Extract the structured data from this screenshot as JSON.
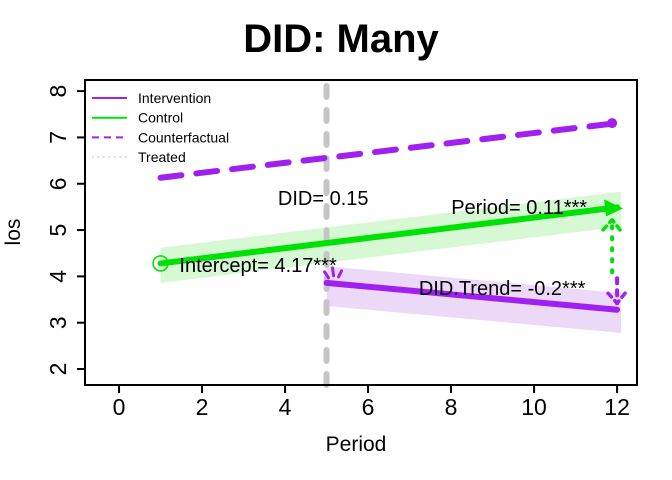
{
  "title": "DID: Many",
  "axes": {
    "x": {
      "label": "Period",
      "ticks": [
        "0",
        "2",
        "4",
        "6",
        "8",
        "10",
        "12"
      ],
      "tick_values": [
        0,
        2,
        4,
        6,
        8,
        10,
        12
      ],
      "range": [
        -0.82,
        12.48
      ]
    },
    "y": {
      "label": "los",
      "ticks": [
        "2",
        "3",
        "4",
        "5",
        "6",
        "7",
        "8"
      ],
      "tick_values": [
        2,
        3,
        4,
        5,
        6,
        7,
        8
      ],
      "range": [
        1.655,
        8.24
      ]
    }
  },
  "legend": {
    "items": [
      {
        "label": "Intervention",
        "color": "#A020F0",
        "dash": "solid"
      },
      {
        "label": "Control",
        "color": "#00E205",
        "dash": "solid"
      },
      {
        "label": "Counterfactual",
        "color": "#A020F0",
        "dash": "dashed"
      },
      {
        "label": "Treated",
        "color": "#D4D4D4",
        "dash": "dotted"
      }
    ]
  },
  "colors": {
    "purple": "#A020F0",
    "green": "#00E205",
    "event_line_gray": "#C5C5C5",
    "band_green": "#d6f9d4",
    "band_purple": "#ecd9f8",
    "text": "#000000"
  },
  "chart_data": {
    "type": "line",
    "title": "DID: Many",
    "xlabel": "Period",
    "ylabel": "los",
    "xlim": [
      -0.82,
      12.48
    ],
    "ylim": [
      1.655,
      8.24
    ],
    "x_ticks": [
      0,
      2,
      4,
      6,
      8,
      10,
      12
    ],
    "y_ticks": [
      2,
      3,
      4,
      5,
      6,
      7,
      8
    ],
    "grid": false,
    "legend_position": "top-left",
    "intervention_time": 5,
    "series": [
      {
        "name": "Control",
        "color": "#00E205",
        "style": "solid",
        "points": [
          [
            1,
            4.28
          ],
          [
            12,
            5.49
          ]
        ],
        "band_upper": 0.34,
        "band_lower": 0.42,
        "band_color": "#d6f9d4",
        "start_marker": "open-circle",
        "end_marker": "arrow"
      },
      {
        "name": "Counterfactual",
        "color": "#A020F0",
        "style": "dashed",
        "points": [
          [
            1,
            6.13
          ],
          [
            12,
            7.31
          ]
        ],
        "end_marker": "dot"
      },
      {
        "name": "Intervention",
        "color": "#A020F0",
        "style": "solid",
        "points": [
          [
            5,
            3.86
          ],
          [
            12,
            3.28
          ]
        ],
        "band_upper": 0.36,
        "band_lower": 0.5,
        "band_color": "#ecd9f8",
        "start_marker": "burst"
      }
    ],
    "event_line": {
      "x": 5,
      "color": "#C5C5C5",
      "style": "dashed"
    },
    "gap_arrows": [
      {
        "color": "#00E205",
        "x": 11.88,
        "from_y": 4.09,
        "to_y": 5.22,
        "head": "up"
      },
      {
        "color": "#A020F0",
        "x": 12.0,
        "from_y": 3.96,
        "to_y": 3.42,
        "head": "down"
      }
    ],
    "annotations": [
      {
        "text": "DID= 0.15",
        "x": 4.92,
        "y": 5.69
      },
      {
        "text": "Period= 0.11***",
        "x": 9.64,
        "y": 5.5
      },
      {
        "text": "Intercept= 4.17***",
        "x": 3.35,
        "y": 4.25
      },
      {
        "text": "DID.Trend= -0.2***",
        "x": 9.23,
        "y": 3.75
      }
    ]
  }
}
